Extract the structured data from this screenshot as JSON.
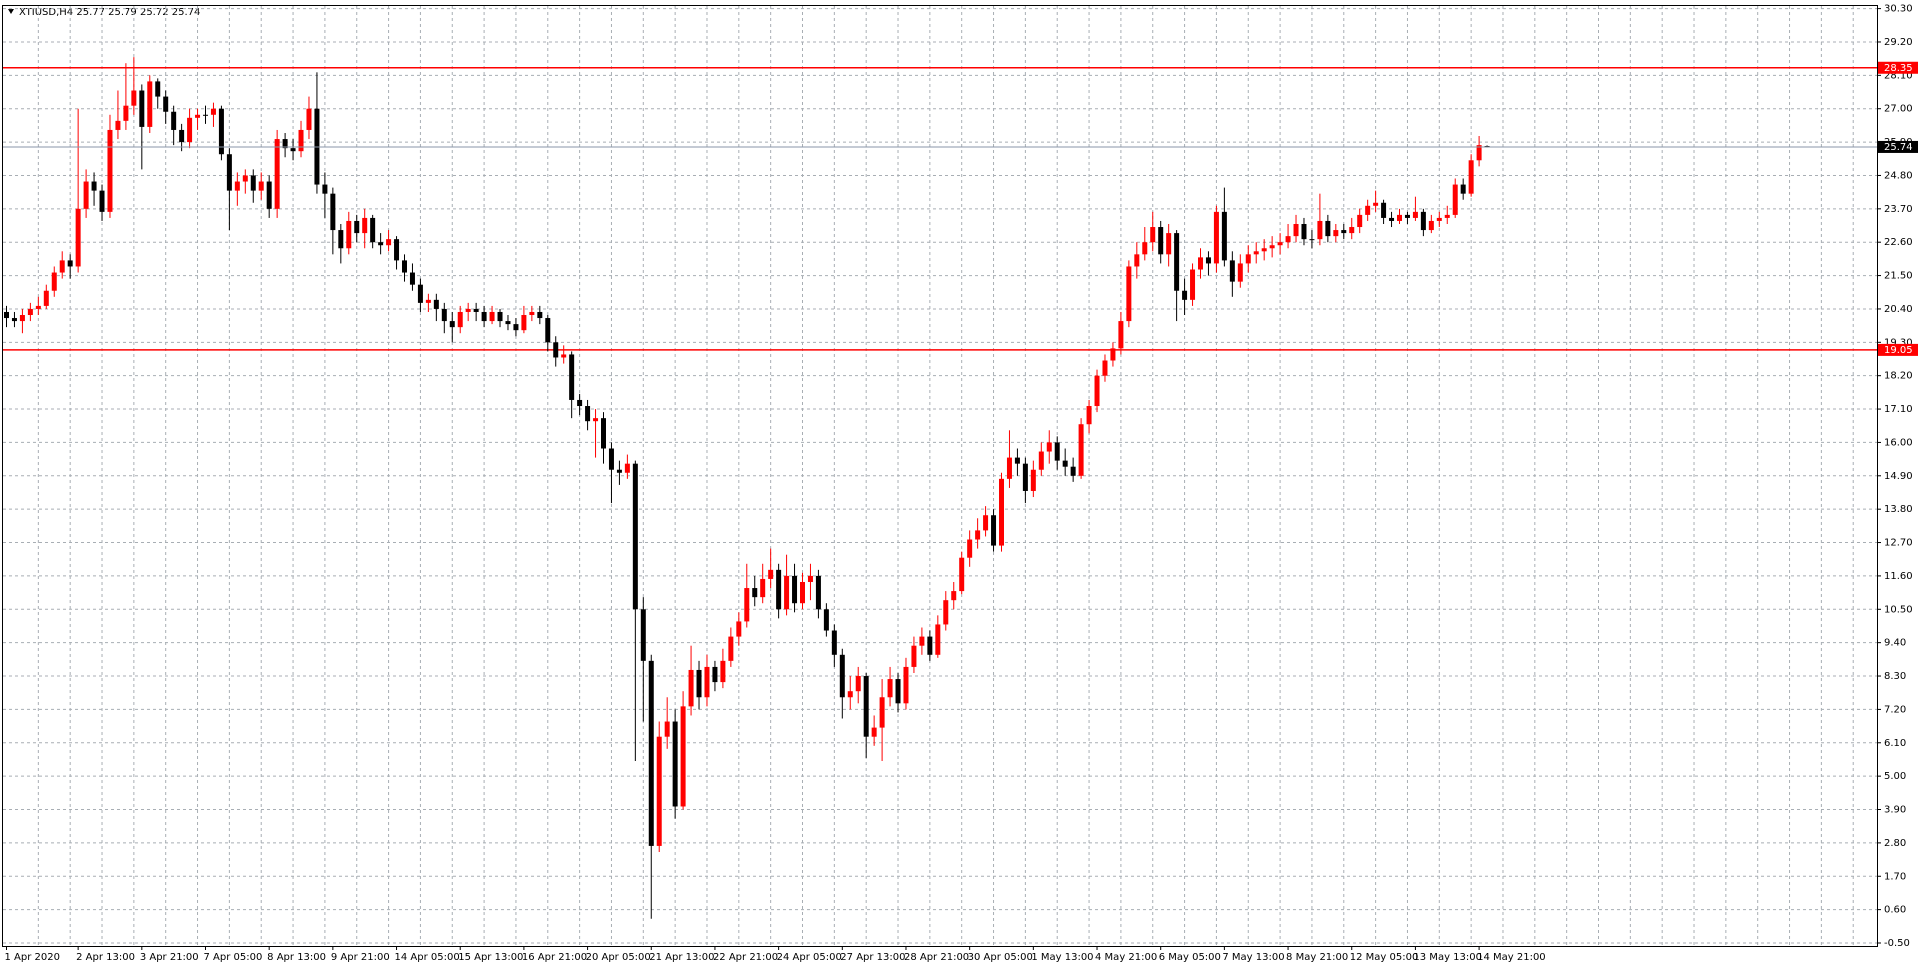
{
  "chart_data": {
    "type": "candlestick",
    "title": "XTIUSD,H4  25.77 25.79 25.72 25.74",
    "up_color": "#ff0000",
    "down_color": "#000000",
    "ylim": [
      -0.5,
      30.3
    ],
    "yticks": [
      {
        "value": 30.3,
        "label": "30.30"
      },
      {
        "value": 29.2,
        "label": "29.20"
      },
      {
        "value": 28.1,
        "label": "28.10"
      },
      {
        "value": 27,
        "label": "27.00"
      },
      {
        "value": 25.9,
        "label": "25.90"
      },
      {
        "value": 24.8,
        "label": "24.80"
      },
      {
        "value": 23.7,
        "label": "23.70"
      },
      {
        "value": 22.6,
        "label": "22.60"
      },
      {
        "value": 21.5,
        "label": "21.50"
      },
      {
        "value": 20.4,
        "label": "20.40"
      },
      {
        "value": 19.3,
        "label": "19.30"
      },
      {
        "value": 18.2,
        "label": "18.20"
      },
      {
        "value": 17.1,
        "label": "17.10"
      },
      {
        "value": 16,
        "label": "16.00"
      },
      {
        "value": 14.9,
        "label": "14.90"
      },
      {
        "value": 13.8,
        "label": "13.80"
      },
      {
        "value": 12.7,
        "label": "12.70"
      },
      {
        "value": 11.6,
        "label": "11.60"
      },
      {
        "value": 10.5,
        "label": "10.50"
      },
      {
        "value": 9.4,
        "label": "9.40"
      },
      {
        "value": 8.3,
        "label": "8.30"
      },
      {
        "value": 7.2,
        "label": "7.20"
      },
      {
        "value": 6.1,
        "label": "6.10"
      },
      {
        "value": 5,
        "label": "5.00"
      },
      {
        "value": 3.9,
        "label": "3.90"
      },
      {
        "value": 2.8,
        "label": "2.80"
      },
      {
        "value": 1.7,
        "label": "1.70"
      },
      {
        "value": 0.6,
        "label": "0.60"
      },
      {
        "value": -0.5,
        "label": "-0.50"
      }
    ],
    "grid": true,
    "levels": [
      28.35,
      19.05
    ],
    "level_color": "#ff0000",
    "last_price": 25.74,
    "x": [
      "1 Apr 2020",
      null,
      null,
      null,
      null,
      null,
      null,
      null,
      null,
      "2 Apr 13:00",
      null,
      null,
      null,
      null,
      null,
      null,
      null,
      "3 Apr 21:00",
      null,
      null,
      null,
      null,
      null,
      null,
      null,
      "7 Apr 05:00",
      null,
      null,
      null,
      null,
      null,
      null,
      null,
      "8 Apr 13:00",
      null,
      null,
      null,
      null,
      null,
      null,
      null,
      "9 Apr 21:00",
      null,
      null,
      null,
      null,
      null,
      null,
      null,
      "14 Apr 05:00",
      null,
      null,
      null,
      null,
      null,
      null,
      null,
      "15 Apr 13:00",
      null,
      null,
      null,
      null,
      null,
      null,
      null,
      "16 Apr 21:00",
      null,
      null,
      null,
      null,
      null,
      null,
      null,
      "20 Apr 05:00",
      null,
      null,
      null,
      null,
      null,
      null,
      null,
      "21 Apr 13:00",
      null,
      null,
      null,
      null,
      null,
      null,
      null,
      "22 Apr 21:00",
      null,
      null,
      null,
      null,
      null,
      null,
      null,
      "24 Apr 05:00",
      null,
      null,
      null,
      null,
      null,
      null,
      null,
      "27 Apr 13:00",
      null,
      null,
      null,
      null,
      null,
      null,
      null,
      "28 Apr 21:00",
      null,
      null,
      null,
      null,
      null,
      null,
      null,
      "30 Apr 05:00",
      null,
      null,
      null,
      null,
      null,
      null,
      null,
      "1 May 13:00",
      null,
      null,
      null,
      null,
      null,
      null,
      null,
      "4 May 21:00",
      null,
      null,
      null,
      null,
      null,
      null,
      null,
      "6 May 05:00",
      null,
      null,
      null,
      null,
      null,
      null,
      null,
      "7 May 13:00",
      null,
      null,
      null,
      null,
      null,
      null,
      null,
      "8 May 21:00",
      null,
      null,
      null,
      null,
      null,
      null,
      null,
      "12 May 05:00",
      null,
      null,
      null,
      null,
      null,
      null,
      null,
      "13 May 13:00",
      null,
      null,
      null,
      null,
      null,
      null,
      null,
      "14 May 21:00",
      null
    ],
    "ohlc": [
      [
        20.3,
        20.5,
        19.8,
        20.1
      ],
      [
        20.1,
        20.3,
        19.8,
        20.0
      ],
      [
        20.0,
        20.4,
        19.6,
        20.2
      ],
      [
        20.2,
        20.6,
        20.0,
        20.4
      ],
      [
        20.4,
        20.8,
        20.2,
        20.5
      ],
      [
        20.5,
        21.2,
        20.4,
        21.0
      ],
      [
        21.0,
        21.8,
        20.8,
        21.6
      ],
      [
        21.6,
        22.3,
        21.4,
        22.0
      ],
      [
        22.0,
        22.2,
        21.4,
        21.8
      ],
      [
        21.8,
        27.0,
        21.6,
        23.7
      ],
      [
        23.7,
        25.0,
        23.4,
        24.6
      ],
      [
        24.6,
        24.9,
        23.8,
        24.3
      ],
      [
        24.3,
        24.5,
        23.3,
        23.6
      ],
      [
        23.6,
        26.8,
        23.4,
        26.3
      ],
      [
        26.3,
        27.6,
        26.0,
        26.6
      ],
      [
        26.6,
        28.5,
        26.3,
        27.1
      ],
      [
        27.1,
        28.7,
        26.8,
        27.6
      ],
      [
        27.6,
        27.8,
        25.0,
        26.4
      ],
      [
        26.4,
        28.1,
        26.2,
        27.9
      ],
      [
        27.9,
        28.0,
        27.0,
        27.4
      ],
      [
        27.4,
        27.6,
        26.5,
        26.9
      ],
      [
        26.9,
        27.1,
        25.8,
        26.3
      ],
      [
        26.3,
        26.5,
        25.6,
        25.9
      ],
      [
        25.9,
        27.0,
        25.7,
        26.7
      ],
      [
        26.7,
        27.0,
        26.3,
        26.8
      ],
      [
        26.8,
        27.1,
        26.5,
        26.8
      ],
      [
        26.8,
        27.2,
        26.4,
        27.0
      ],
      [
        27.0,
        27.1,
        25.3,
        25.5
      ],
      [
        25.5,
        25.7,
        23.0,
        24.3
      ],
      [
        24.3,
        24.9,
        23.8,
        24.6
      ],
      [
        24.6,
        25.0,
        24.2,
        24.8
      ],
      [
        24.8,
        25.0,
        23.9,
        24.3
      ],
      [
        24.3,
        24.9,
        24.0,
        24.6
      ],
      [
        24.6,
        24.8,
        23.4,
        23.7
      ],
      [
        23.7,
        26.3,
        23.4,
        26.0
      ],
      [
        26.0,
        26.2,
        25.4,
        25.7
      ],
      [
        25.7,
        26.0,
        25.3,
        25.6
      ],
      [
        25.6,
        26.6,
        25.4,
        26.3
      ],
      [
        26.3,
        27.4,
        26.0,
        27.0
      ],
      [
        27.0,
        28.2,
        24.2,
        24.5
      ],
      [
        24.5,
        24.9,
        23.4,
        24.2
      ],
      [
        24.2,
        24.4,
        22.2,
        23.0
      ],
      [
        23.0,
        23.2,
        21.9,
        22.4
      ],
      [
        22.4,
        23.6,
        22.2,
        23.3
      ],
      [
        23.3,
        23.5,
        22.6,
        22.9
      ],
      [
        22.9,
        23.7,
        22.4,
        23.4
      ],
      [
        23.4,
        23.5,
        22.4,
        22.6
      ],
      [
        22.6,
        22.9,
        22.2,
        22.5
      ],
      [
        22.5,
        23.0,
        22.3,
        22.7
      ],
      [
        22.7,
        22.8,
        21.7,
        22.0
      ],
      [
        22.0,
        22.2,
        21.3,
        21.6
      ],
      [
        21.6,
        21.9,
        21.0,
        21.2
      ],
      [
        21.2,
        21.4,
        20.3,
        20.6
      ],
      [
        20.6,
        20.9,
        20.3,
        20.7
      ],
      [
        20.7,
        20.9,
        20.0,
        20.4
      ],
      [
        20.4,
        20.6,
        19.6,
        20.0
      ],
      [
        20.0,
        20.3,
        19.3,
        19.8
      ],
      [
        19.8,
        20.5,
        19.6,
        20.3
      ],
      [
        20.3,
        20.6,
        20.0,
        20.4
      ],
      [
        20.4,
        20.6,
        20.0,
        20.3
      ],
      [
        20.3,
        20.5,
        19.8,
        20.0
      ],
      [
        20.0,
        20.5,
        19.9,
        20.3
      ],
      [
        20.3,
        20.4,
        19.8,
        20.0
      ],
      [
        20.0,
        20.2,
        19.7,
        19.9
      ],
      [
        19.9,
        20.1,
        19.5,
        19.7
      ],
      [
        19.7,
        20.5,
        19.6,
        20.2
      ],
      [
        20.2,
        20.5,
        20.0,
        20.3
      ],
      [
        20.3,
        20.5,
        19.9,
        20.1
      ],
      [
        20.1,
        20.2,
        19.0,
        19.3
      ],
      [
        19.3,
        19.5,
        18.5,
        18.8
      ],
      [
        18.8,
        19.2,
        18.6,
        18.9
      ],
      [
        18.9,
        19.0,
        16.8,
        17.4
      ],
      [
        17.4,
        17.6,
        16.9,
        17.2
      ],
      [
        17.2,
        17.4,
        16.4,
        16.7
      ],
      [
        16.7,
        17.1,
        15.5,
        16.8
      ],
      [
        16.8,
        17.0,
        15.3,
        15.8
      ],
      [
        15.8,
        16.0,
        14.0,
        15.1
      ],
      [
        15.1,
        15.4,
        14.6,
        15.0
      ],
      [
        15.0,
        15.6,
        14.8,
        15.3
      ],
      [
        15.3,
        15.4,
        5.5,
        10.5
      ],
      [
        10.5,
        10.9,
        6.8,
        8.8
      ],
      [
        8.8,
        9.0,
        0.3,
        2.7
      ],
      [
        2.7,
        6.8,
        2.5,
        6.3
      ],
      [
        6.3,
        7.6,
        5.9,
        6.8
      ],
      [
        6.8,
        7.2,
        3.6,
        4.0
      ],
      [
        4.0,
        7.8,
        3.9,
        7.3
      ],
      [
        7.3,
        9.3,
        7.0,
        8.5
      ],
      [
        8.5,
        8.8,
        7.2,
        7.6
      ],
      [
        7.6,
        9.0,
        7.3,
        8.6
      ],
      [
        8.6,
        8.8,
        7.8,
        8.1
      ],
      [
        8.1,
        9.2,
        7.9,
        8.8
      ],
      [
        8.8,
        9.9,
        8.6,
        9.6
      ],
      [
        9.6,
        10.4,
        9.3,
        10.1
      ],
      [
        10.1,
        12.0,
        9.9,
        11.2
      ],
      [
        11.2,
        11.6,
        10.6,
        10.9
      ],
      [
        10.9,
        12.0,
        10.7,
        11.5
      ],
      [
        11.5,
        12.5,
        11.2,
        11.8
      ],
      [
        11.8,
        12.0,
        10.2,
        10.5
      ],
      [
        10.5,
        12.3,
        10.3,
        11.6
      ],
      [
        11.6,
        12.0,
        10.4,
        10.7
      ],
      [
        10.7,
        11.7,
        10.5,
        11.4
      ],
      [
        11.4,
        12.0,
        10.8,
        11.6
      ],
      [
        11.6,
        11.8,
        10.2,
        10.5
      ],
      [
        10.5,
        10.7,
        9.6,
        9.8
      ],
      [
        9.8,
        10.0,
        8.6,
        9.0
      ],
      [
        9.0,
        9.2,
        6.9,
        7.6
      ],
      [
        7.6,
        8.3,
        7.2,
        7.8
      ],
      [
        7.8,
        8.6,
        7.4,
        8.3
      ],
      [
        8.3,
        8.4,
        5.6,
        6.3
      ],
      [
        6.3,
        7.0,
        6.0,
        6.6
      ],
      [
        6.6,
        8.2,
        5.5,
        7.6
      ],
      [
        7.6,
        8.6,
        7.3,
        8.2
      ],
      [
        8.2,
        8.4,
        7.1,
        7.4
      ],
      [
        7.4,
        8.9,
        7.2,
        8.6
      ],
      [
        8.6,
        9.6,
        8.4,
        9.3
      ],
      [
        9.3,
        9.9,
        9.0,
        9.6
      ],
      [
        9.6,
        9.8,
        8.8,
        9.0
      ],
      [
        9.0,
        10.3,
        8.9,
        10.0
      ],
      [
        10.0,
        11.1,
        9.8,
        10.8
      ],
      [
        10.8,
        11.4,
        10.5,
        11.1
      ],
      [
        11.1,
        12.4,
        11.0,
        12.2
      ],
      [
        12.2,
        13.1,
        11.9,
        12.8
      ],
      [
        12.8,
        13.5,
        12.5,
        13.1
      ],
      [
        13.1,
        13.9,
        12.9,
        13.6
      ],
      [
        13.6,
        13.8,
        12.4,
        12.6
      ],
      [
        12.6,
        15.0,
        12.4,
        14.8
      ],
      [
        14.8,
        16.4,
        14.5,
        15.5
      ],
      [
        15.5,
        15.8,
        14.9,
        15.3
      ],
      [
        15.3,
        15.5,
        14.0,
        14.4
      ],
      [
        14.4,
        15.4,
        14.2,
        15.1
      ],
      [
        15.1,
        16.0,
        14.9,
        15.7
      ],
      [
        15.7,
        16.4,
        15.3,
        16.0
      ],
      [
        16.0,
        16.2,
        15.1,
        15.4
      ],
      [
        15.4,
        15.8,
        14.9,
        15.2
      ],
      [
        15.2,
        15.5,
        14.7,
        14.9
      ],
      [
        14.9,
        16.8,
        14.8,
        16.6
      ],
      [
        16.6,
        17.4,
        16.3,
        17.2
      ],
      [
        17.2,
        18.4,
        17.0,
        18.2
      ],
      [
        18.2,
        18.9,
        18.0,
        18.7
      ],
      [
        18.7,
        19.3,
        18.5,
        19.1
      ],
      [
        19.1,
        20.3,
        18.9,
        20.0
      ],
      [
        20.0,
        22.0,
        19.8,
        21.8
      ],
      [
        21.8,
        22.6,
        21.4,
        22.2
      ],
      [
        22.2,
        23.1,
        22.0,
        22.6
      ],
      [
        22.6,
        23.6,
        22.3,
        23.1
      ],
      [
        23.1,
        23.3,
        21.9,
        22.2
      ],
      [
        22.2,
        23.2,
        21.8,
        22.9
      ],
      [
        22.9,
        23.0,
        20.0,
        21.0
      ],
      [
        21.0,
        21.4,
        20.2,
        20.7
      ],
      [
        20.7,
        21.9,
        20.5,
        21.7
      ],
      [
        21.7,
        22.4,
        21.4,
        22.1
      ],
      [
        22.1,
        22.3,
        21.5,
        21.9
      ],
      [
        21.9,
        23.8,
        21.6,
        23.6
      ],
      [
        23.6,
        24.4,
        21.8,
        22.0
      ],
      [
        22.0,
        22.3,
        20.8,
        21.3
      ],
      [
        21.3,
        22.2,
        21.1,
        21.9
      ],
      [
        21.9,
        22.5,
        21.6,
        22.2
      ],
      [
        22.2,
        22.6,
        21.9,
        22.3
      ],
      [
        22.3,
        22.7,
        22.0,
        22.4
      ],
      [
        22.4,
        22.8,
        22.1,
        22.5
      ],
      [
        22.5,
        22.9,
        22.2,
        22.6
      ],
      [
        22.6,
        23.2,
        22.4,
        22.8
      ],
      [
        22.8,
        23.5,
        22.6,
        23.2
      ],
      [
        23.2,
        23.4,
        22.5,
        22.7
      ],
      [
        22.7,
        23.0,
        22.4,
        22.7
      ],
      [
        22.7,
        24.2,
        22.5,
        23.3
      ],
      [
        23.3,
        23.5,
        22.6,
        22.8
      ],
      [
        22.8,
        23.2,
        22.6,
        23.0
      ],
      [
        23.0,
        23.2,
        22.7,
        22.9
      ],
      [
        22.9,
        23.4,
        22.7,
        23.1
      ],
      [
        23.1,
        23.7,
        22.9,
        23.5
      ],
      [
        23.5,
        24.0,
        23.3,
        23.8
      ],
      [
        23.8,
        24.3,
        23.6,
        23.9
      ],
      [
        23.9,
        24.0,
        23.2,
        23.4
      ],
      [
        23.4,
        23.6,
        23.1,
        23.3
      ],
      [
        23.3,
        23.7,
        23.2,
        23.5
      ],
      [
        23.5,
        23.6,
        23.2,
        23.4
      ],
      [
        23.4,
        24.1,
        23.3,
        23.6
      ],
      [
        23.6,
        23.7,
        22.8,
        23.0
      ],
      [
        23.0,
        23.5,
        22.9,
        23.3
      ],
      [
        23.3,
        23.6,
        23.1,
        23.4
      ],
      [
        23.4,
        23.8,
        23.2,
        23.5
      ],
      [
        23.5,
        24.7,
        23.4,
        24.5
      ],
      [
        24.5,
        24.7,
        24.0,
        24.2
      ],
      [
        24.2,
        25.5,
        24.1,
        25.3
      ],
      [
        25.3,
        26.1,
        25.1,
        25.8
      ],
      [
        25.77,
        25.79,
        25.72,
        25.74
      ]
    ]
  }
}
